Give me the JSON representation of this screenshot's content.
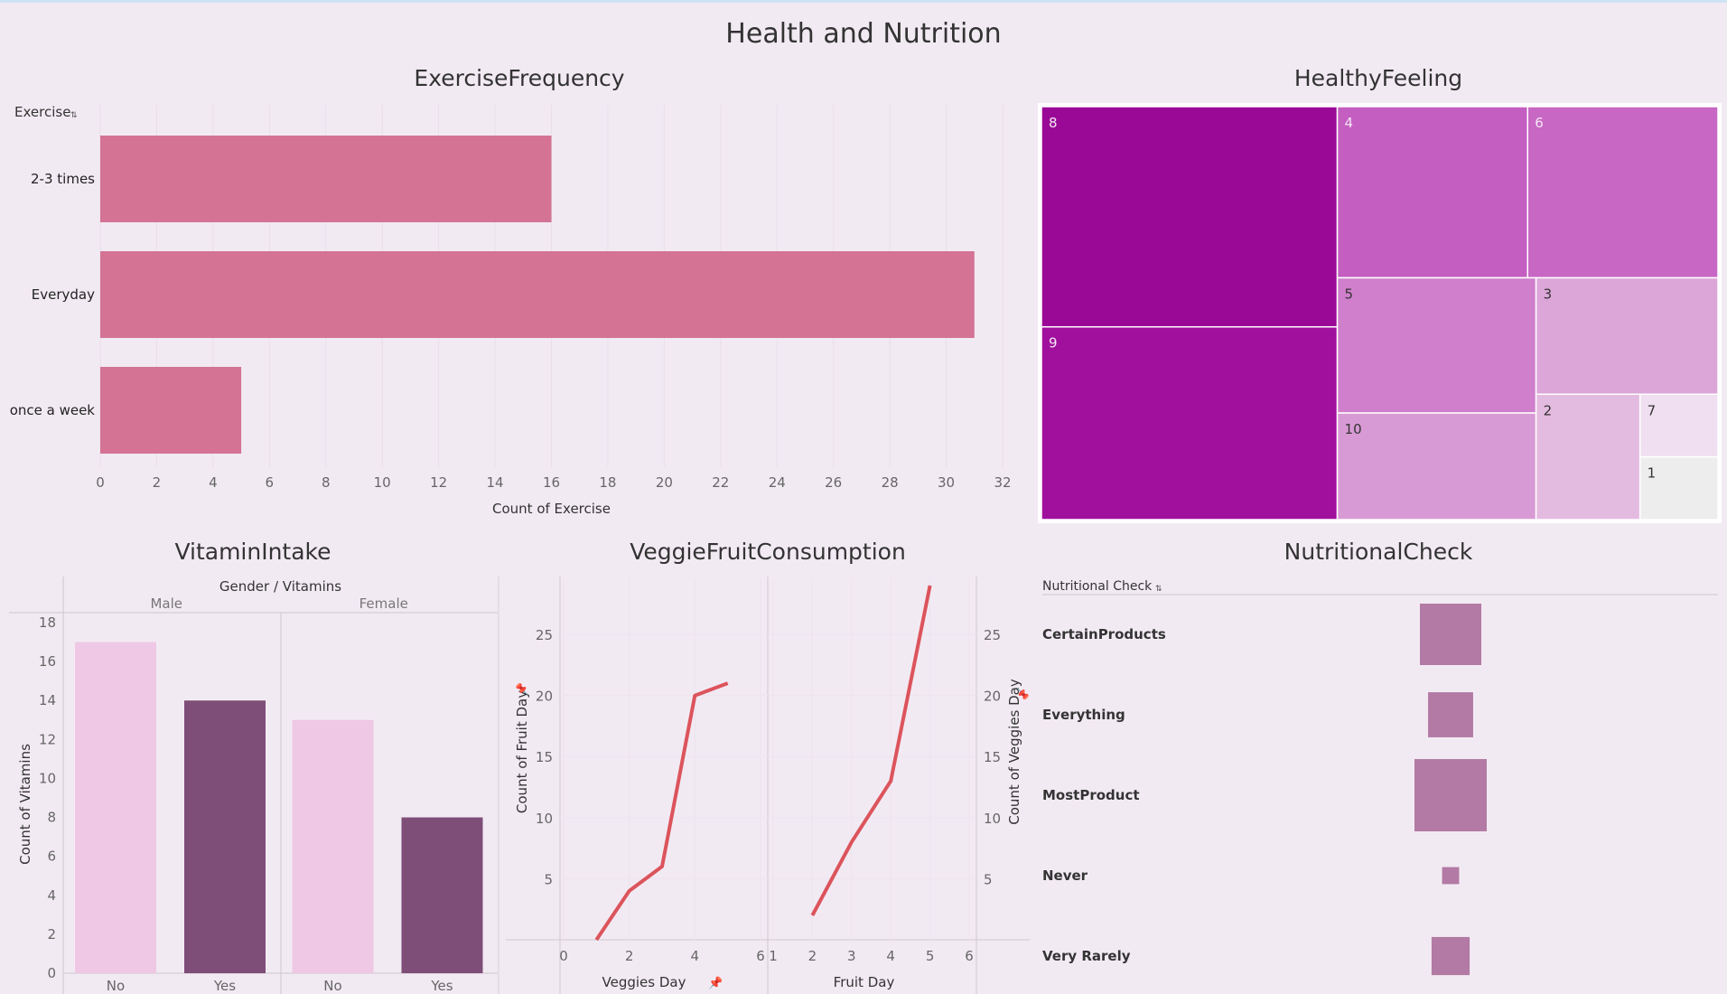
{
  "dashboard_title": "Health and Nutrition",
  "chart_data": [
    {
      "id": "exercise",
      "type": "bar",
      "orientation": "horizontal",
      "title": "ExerciseFrequency",
      "field_label": "Exercise",
      "xlabel": "Count of Exercise",
      "categories": [
        "2-3 times",
        "Everyday",
        "once a week"
      ],
      "values": [
        16,
        31,
        5
      ],
      "xlim": [
        0,
        32
      ],
      "xticks": [
        0,
        2,
        4,
        6,
        8,
        10,
        12,
        14,
        16,
        18,
        20,
        22,
        24,
        26,
        28,
        30,
        32
      ],
      "color": "#d47394",
      "grid": true
    },
    {
      "id": "healthy",
      "type": "treemap",
      "title": "HealthyFeeling",
      "items": [
        {
          "label": "8",
          "value": 8,
          "color": "#990996"
        },
        {
          "label": "9",
          "value": 7,
          "color": "#a0109c"
        },
        {
          "label": "4",
          "value": 4,
          "color": "#c45ec0"
        },
        {
          "label": "6",
          "value": 4,
          "color": "#c867c4"
        },
        {
          "label": "5",
          "value": 3.3,
          "color": "#d07fcc"
        },
        {
          "label": "10",
          "value": 2.6,
          "color": "#d89ad4"
        },
        {
          "label": "3",
          "value": 2.6,
          "color": "#dca6d8"
        },
        {
          "label": "2",
          "value": 1.6,
          "color": "#e3bae0"
        },
        {
          "label": "7",
          "value": 0.6,
          "color": "#f0dff0"
        },
        {
          "label": "1",
          "value": 0.6,
          "color": "#ededee"
        }
      ]
    },
    {
      "id": "vitamins",
      "type": "bar",
      "title": "VitaminIntake",
      "header": "Gender  /  Vitamins",
      "groups": [
        "Male",
        "Female"
      ],
      "categories": [
        "No",
        "Yes"
      ],
      "series": [
        {
          "group": "Male",
          "values": [
            17,
            14
          ]
        },
        {
          "group": "Female",
          "values": [
            13,
            8
          ]
        }
      ],
      "ylabel": "Count of Vitamins",
      "ylim": [
        0,
        18
      ],
      "yticks": [
        0,
        2,
        4,
        6,
        8,
        10,
        12,
        14,
        16,
        18
      ],
      "colors": {
        "No": "#eec8e5",
        "Yes": "#7e4d78"
      }
    },
    {
      "id": "veggie",
      "type": "line",
      "title": "VeggieFruitConsumption",
      "color": "#dc545c",
      "panels": [
        {
          "xlabel": "Veggies Day",
          "ylabel": "Count of Fruit Day",
          "x": [
            1,
            2,
            3,
            4,
            5
          ],
          "y": [
            0,
            4,
            6,
            20,
            21
          ],
          "xlim": [
            0,
            6
          ],
          "xticks": [
            0,
            2,
            4,
            6
          ],
          "ylim": [
            0,
            29
          ],
          "yticks": [
            5,
            10,
            15,
            20,
            25
          ]
        },
        {
          "xlabel": "Fruit Day",
          "ylabel": "Count of Veggies Day",
          "x": [
            2,
            3,
            4,
            5
          ],
          "y": [
            2,
            8,
            13,
            29
          ],
          "xlim": [
            1,
            6
          ],
          "xticks": [
            1,
            2,
            3,
            4,
            5,
            6
          ],
          "ylim": [
            0,
            29
          ],
          "yticks": [
            5,
            10,
            15,
            20,
            25
          ]
        }
      ]
    },
    {
      "id": "nutritional",
      "type": "square",
      "title": "NutritionalCheck",
      "field_label": "Nutritional Check",
      "categories": [
        "CertainProducts",
        "Everything",
        "MostProduct",
        "Never",
        "Very Rarely"
      ],
      "values": [
        13,
        7,
        18,
        1,
        5
      ],
      "color": "#b27aa4"
    }
  ]
}
